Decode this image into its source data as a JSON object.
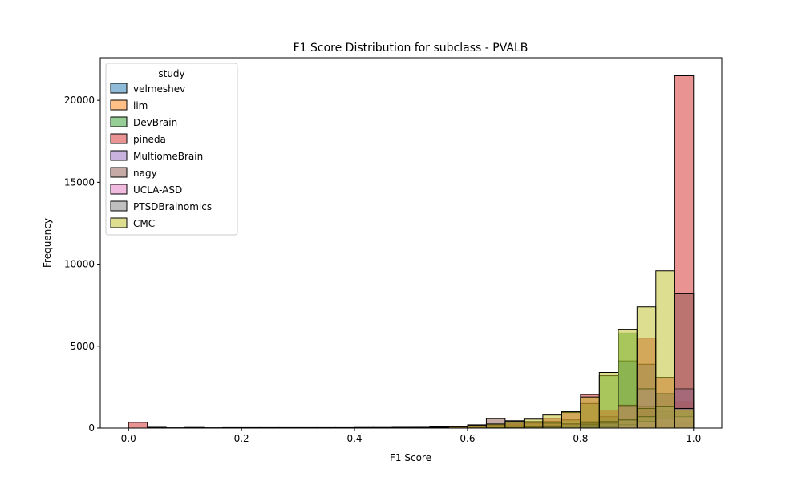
{
  "chart_data": {
    "type": "bar",
    "title": "F1 Score Distribution for subclass - PVALB",
    "xlabel": "F1 Score",
    "ylabel": "Frequency",
    "xlim": [
      -0.05,
      1.05
    ],
    "ylim": [
      0,
      22600
    ],
    "xticks": [
      0.0,
      0.2,
      0.4,
      0.6,
      0.8,
      1.0
    ],
    "xtick_labels": [
      "0.0",
      "0.2",
      "0.4",
      "0.6",
      "0.8",
      "1.0"
    ],
    "yticks": [
      0,
      5000,
      10000,
      15000,
      20000
    ],
    "ytick_labels": [
      "0",
      "5000",
      "10000",
      "15000",
      "20000"
    ],
    "bin_width": 0.0333,
    "bins_start": [
      0.0,
      0.0333,
      0.0667,
      0.1,
      0.1333,
      0.1667,
      0.2,
      0.2333,
      0.2667,
      0.3,
      0.3333,
      0.3667,
      0.4,
      0.4333,
      0.4667,
      0.5,
      0.5333,
      0.5667,
      0.6,
      0.6333,
      0.6667,
      0.7,
      0.7333,
      0.7667,
      0.8,
      0.8333,
      0.8667,
      0.9,
      0.9333,
      0.9667
    ],
    "legend_title": "study",
    "legend_position": "upper-left",
    "alpha": 0.5,
    "series": [
      {
        "name": "velmeshev",
        "color": "#1f77b4",
        "values": [
          0,
          0,
          0,
          0,
          0,
          0,
          0,
          0,
          0,
          0,
          0,
          0,
          0,
          0,
          0,
          0,
          0,
          20,
          30,
          40,
          60,
          100,
          150,
          250,
          400,
          700,
          4100,
          3900,
          1000,
          300
        ]
      },
      {
        "name": "lim",
        "color": "#ff7f0e",
        "values": [
          0,
          0,
          0,
          0,
          0,
          0,
          0,
          0,
          0,
          0,
          0,
          0,
          0,
          0,
          0,
          0,
          0,
          0,
          0,
          0,
          0,
          10,
          20,
          30,
          60,
          100,
          300,
          600,
          1100,
          1600
        ]
      },
      {
        "name": "DevBrain",
        "color": "#2ca02c",
        "values": [
          0,
          0,
          0,
          0,
          0,
          0,
          0,
          0,
          0,
          0,
          0,
          0,
          0,
          0,
          10,
          20,
          40,
          70,
          100,
          150,
          200,
          300,
          400,
          500,
          1500,
          3200,
          5800,
          1300,
          400,
          300
        ]
      },
      {
        "name": "pineda",
        "color": "#d62728",
        "values": [
          350,
          50,
          20,
          40,
          20,
          30,
          30,
          30,
          30,
          30,
          30,
          30,
          40,
          40,
          50,
          50,
          70,
          80,
          120,
          200,
          300,
          400,
          600,
          950,
          2050,
          1100,
          1300,
          5500,
          3100,
          21500
        ]
      },
      {
        "name": "MultiomeBrain",
        "color": "#9467bd",
        "values": [
          0,
          0,
          0,
          0,
          0,
          0,
          0,
          0,
          0,
          0,
          0,
          0,
          0,
          0,
          0,
          0,
          0,
          0,
          0,
          0,
          0,
          10,
          20,
          40,
          80,
          200,
          1400,
          2400,
          2100,
          2400
        ]
      },
      {
        "name": "nagy",
        "color": "#8c564b",
        "values": [
          0,
          0,
          0,
          0,
          0,
          0,
          0,
          0,
          0,
          0,
          0,
          0,
          0,
          20,
          30,
          50,
          80,
          120,
          200,
          580,
          450,
          350,
          300,
          250,
          300,
          400,
          500,
          1200,
          2100,
          8200
        ]
      },
      {
        "name": "UCLA-ASD",
        "color": "#e377c2",
        "values": [
          0,
          0,
          0,
          0,
          0,
          0,
          0,
          0,
          0,
          0,
          0,
          0,
          0,
          0,
          0,
          0,
          0,
          0,
          0,
          0,
          0,
          10,
          10,
          20,
          40,
          80,
          200,
          400,
          600,
          700
        ]
      },
      {
        "name": "PTSDBrainomics",
        "color": "#7f7f7f",
        "values": [
          0,
          0,
          0,
          0,
          0,
          0,
          0,
          0,
          0,
          0,
          0,
          0,
          0,
          0,
          0,
          0,
          0,
          0,
          10,
          20,
          30,
          60,
          80,
          120,
          200,
          300,
          500,
          700,
          1300,
          1200
        ]
      },
      {
        "name": "CMC",
        "color": "#bcbd22",
        "values": [
          0,
          0,
          0,
          0,
          0,
          0,
          0,
          0,
          0,
          0,
          0,
          0,
          0,
          0,
          0,
          20,
          50,
          80,
          150,
          250,
          400,
          550,
          800,
          1000,
          1900,
          3400,
          6000,
          7400,
          9600,
          1100
        ]
      }
    ]
  }
}
